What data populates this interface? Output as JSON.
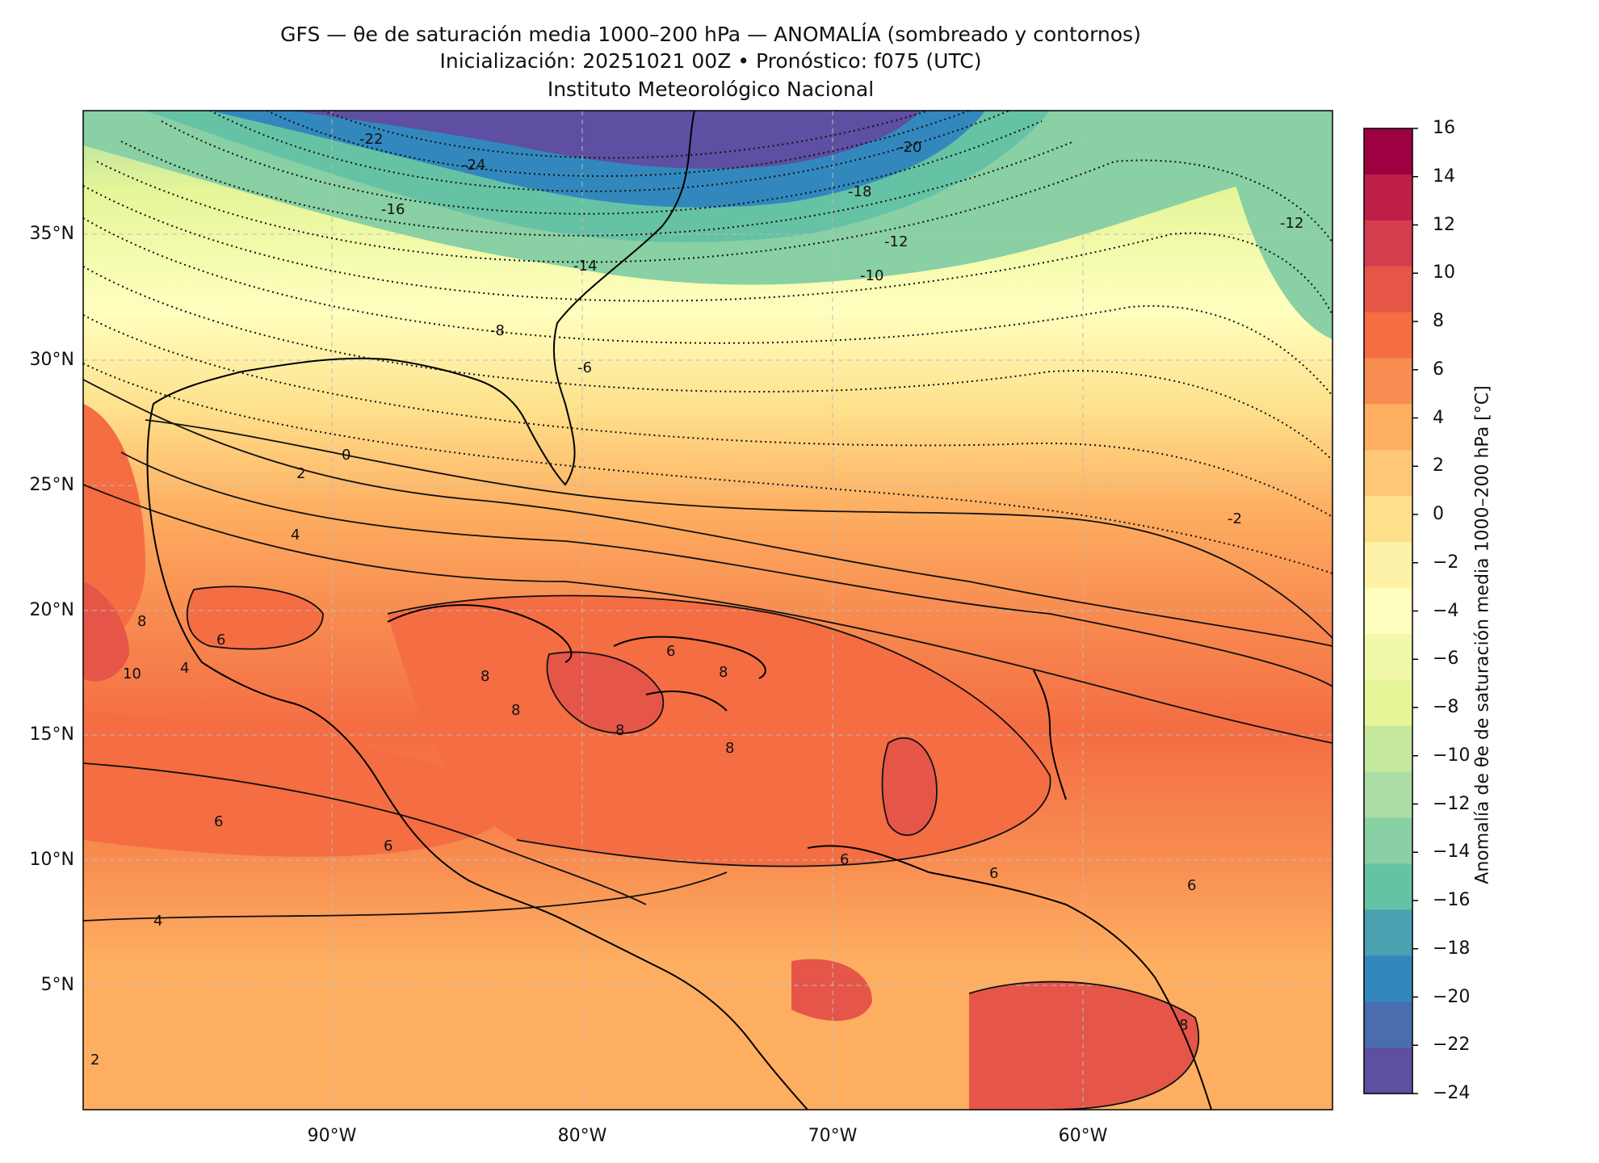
{
  "title": {
    "line1": "GFS — θe de saturación media 1000–200 hPa — ANOMALÍA (sombreado y contornos)",
    "line2": "Inicialización: 20251021 00Z   •   Pronóstico: f075 (UTC)",
    "line3": "Instituto Meteorológico Nacional"
  },
  "map": {
    "lat_labels": [
      "35°N",
      "30°N",
      "25°N",
      "20°N",
      "15°N",
      "10°N",
      "5°N"
    ],
    "lon_labels": [
      "90°W",
      "80°W",
      "70°W",
      "60°W"
    ],
    "contour_labels": [
      "-24",
      "-22",
      "-20",
      "-18",
      "-16",
      "-14",
      "-12",
      "-12",
      "-10",
      "-8",
      "-6",
      "-2",
      "0",
      "2",
      "4",
      "4",
      "4",
      "6",
      "6",
      "6",
      "6",
      "6",
      "6",
      "6",
      "8",
      "8",
      "8",
      "8",
      "8",
      "8",
      "8",
      "10",
      "2"
    ]
  },
  "colorbar": {
    "title": "Anomalía de θe de saturación media 1000–200 hPa [°C]",
    "ticks": [
      "16",
      "14",
      "12",
      "10",
      "8",
      "6",
      "4",
      "2",
      "0",
      "−2",
      "−4",
      "−6",
      "−8",
      "−10",
      "−12",
      "−14",
      "−16",
      "−18",
      "−20",
      "−22",
      "−24"
    ],
    "colors": [
      "#9e0142",
      "#be1f49",
      "#d53e4f",
      "#e55649",
      "#f46d43",
      "#f88d51",
      "#fdae61",
      "#fdc776",
      "#fee08b",
      "#fef2a8",
      "#ffffbf",
      "#f1f9a9",
      "#e6f598",
      "#c6e89d",
      "#abdda4",
      "#89d0a4",
      "#66c2a5",
      "#4ba0b1",
      "#3288bd",
      "#4a6db0",
      "#5e4fa2"
    ]
  }
}
